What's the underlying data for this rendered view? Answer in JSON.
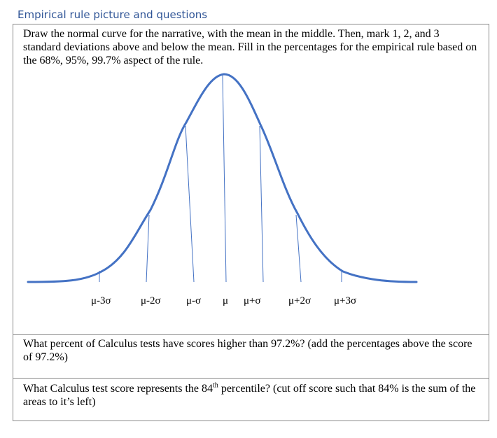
{
  "heading": "Empirical rule picture and questions",
  "instructions": "Draw the normal curve for the narrative, with the mean in the middle. Then, mark 1, 2, and 3 standard deviations above and below the mean. Fill in the percentages for the empirical rule based on the 68%, 95%, 99.7% aspect of the rule.",
  "axis_labels": [
    "μ-3σ",
    "μ-2σ",
    "μ-σ",
    "μ",
    "μ+σ",
    "μ+2σ",
    "μ+3σ"
  ],
  "question1": "What percent of Calculus tests have scores higher than 97.2%? (add the percentages above the score of 97.2%)",
  "question2": {
    "before": "What Calculus test score represents the 84",
    "superscript": "th",
    "after": " percentile? (cut off score such that 84% is the sum of the areas to it’s left)"
  },
  "colors": {
    "heading": "#2f5496",
    "curve": "#4472c4",
    "border": "#8a8a8a"
  }
}
